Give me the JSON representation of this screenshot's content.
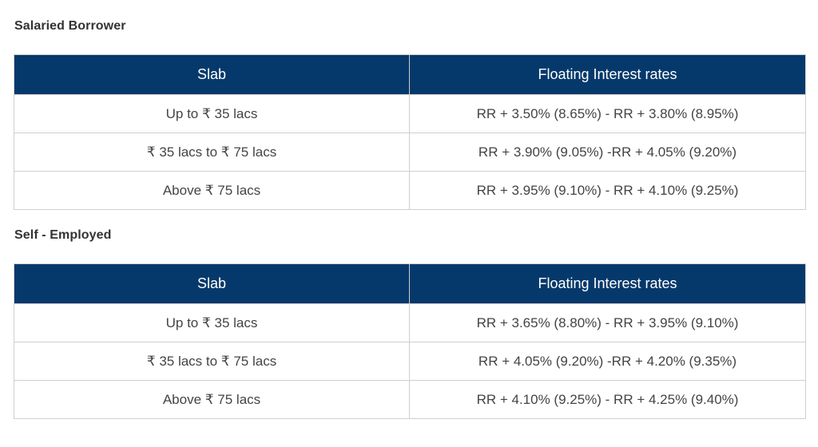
{
  "sections": [
    {
      "title": "Salaried Borrower",
      "headers": [
        "Slab",
        "Floating Interest rates"
      ],
      "rows": [
        [
          "Up to ₹ 35 lacs",
          "RR + 3.50% (8.65%) - RR + 3.80% (8.95%)"
        ],
        [
          "₹ 35 lacs to ₹ 75 lacs",
          "RR + 3.90% (9.05%) -RR + 4.05% (9.20%)"
        ],
        [
          "Above ₹ 75 lacs",
          "RR + 3.95% (9.10%) - RR + 4.10% (9.25%)"
        ]
      ]
    },
    {
      "title": "Self - Employed",
      "headers": [
        "Slab",
        "Floating Interest rates"
      ],
      "rows": [
        [
          "Up to ₹ 35 lacs",
          "RR + 3.65% (8.80%) - RR + 3.95% (9.10%)"
        ],
        [
          "₹ 35 lacs to ₹ 75 lacs",
          "RR + 4.05% (9.20%) -RR + 4.20% (9.35%)"
        ],
        [
          "Above ₹ 75 lacs",
          "RR + 4.10% (9.25%) - RR + 4.25% (9.40%)"
        ]
      ]
    }
  ],
  "colors": {
    "header_bg": "#06396b",
    "header_text": "#ffffff",
    "border": "#cfcfcf",
    "body_text": "#444444"
  }
}
